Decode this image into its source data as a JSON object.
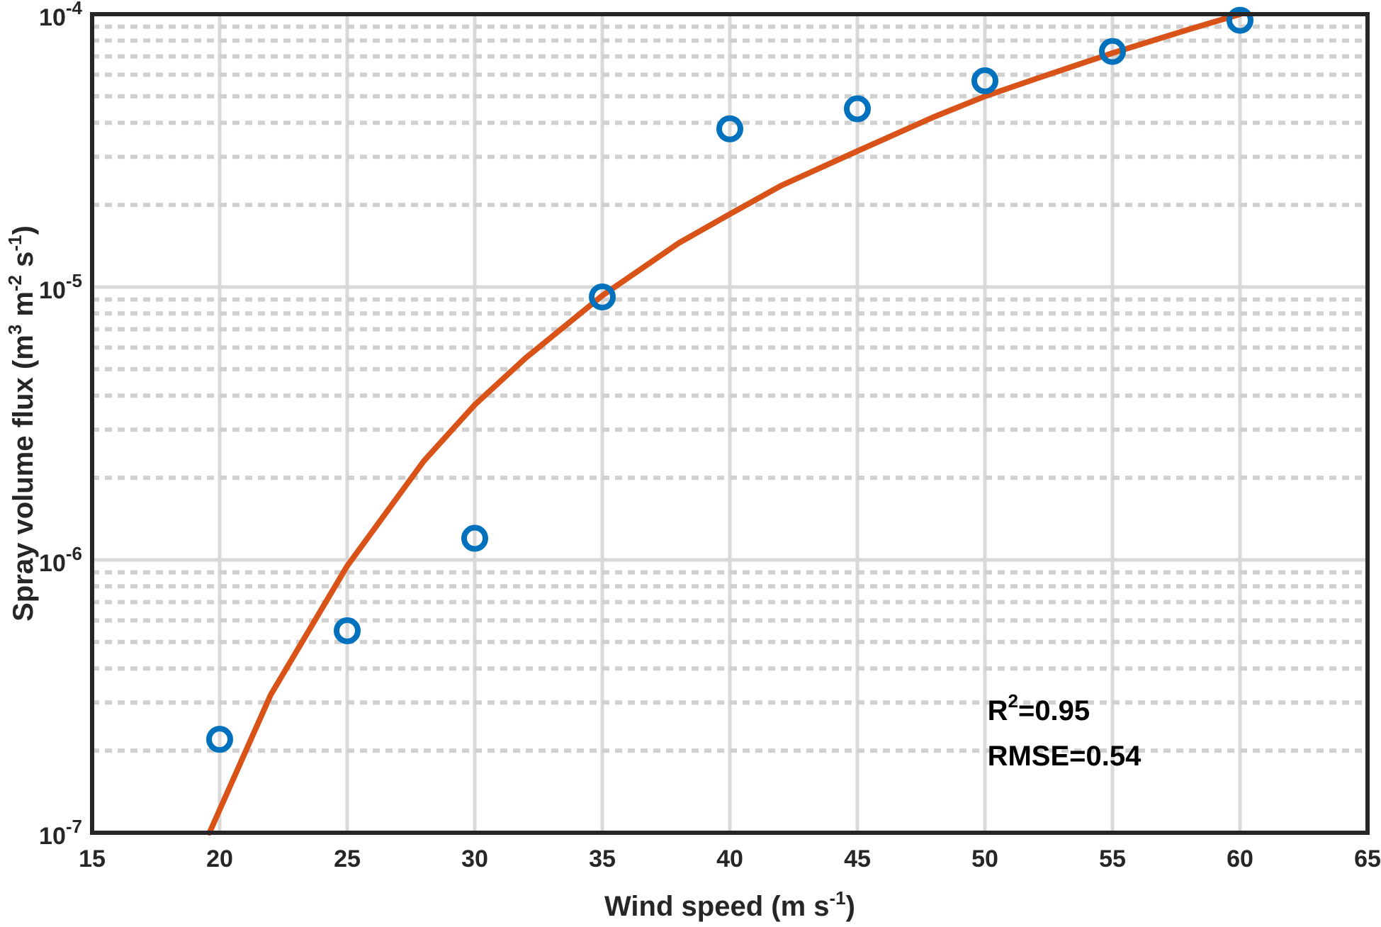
{
  "chart_data": {
    "type": "scatter",
    "x_axis": {
      "label_main": "Wind speed (m s",
      "label_sup": "-1",
      "label_close": ")",
      "lim": [
        15,
        65
      ],
      "ticks": [
        15,
        20,
        25,
        30,
        35,
        40,
        45,
        50,
        55,
        60,
        65
      ],
      "tick_labels": [
        "15",
        "20",
        "25",
        "30",
        "35",
        "40",
        "45",
        "50",
        "55",
        "60",
        "65"
      ]
    },
    "y_axis": {
      "scale": "log",
      "lim": [
        1e-07,
        0.0001
      ],
      "label_parts": [
        {
          "t": "Spray volume flux (m",
          "sup": false
        },
        {
          "t": "3",
          "sup": true
        },
        {
          "t": " m",
          "sup": false
        },
        {
          "t": "-2",
          "sup": true
        },
        {
          "t": " s",
          "sup": false
        },
        {
          "t": "-1",
          "sup": true
        },
        {
          "t": ")",
          "sup": false
        }
      ],
      "ticks": [
        {
          "value": 1e-07,
          "base": "10",
          "exp": "-7"
        },
        {
          "value": 1e-06,
          "base": "10",
          "exp": "-6"
        },
        {
          "value": 1e-05,
          "base": "10",
          "exp": "-5"
        },
        {
          "value": 0.0001,
          "base": "10",
          "exp": "-4"
        }
      ]
    },
    "grid": "on (major solid, minor dotted on y)",
    "series": [
      {
        "type": "scatter",
        "marker": "circle",
        "color": "#0072BD",
        "x": [
          20,
          25,
          30,
          35,
          40,
          45,
          50,
          55,
          60
        ],
        "y": [
          2.2e-07,
          5.5e-07,
          1.2e-06,
          9.2e-06,
          3.8e-05,
          4.5e-05,
          5.7e-05,
          7.3e-05,
          9.5e-05
        ]
      },
      {
        "type": "line",
        "color": "#D95319",
        "x": [
          19.6,
          22,
          25,
          28,
          30,
          32,
          35,
          38,
          40,
          42,
          45,
          48,
          50,
          52,
          55,
          58,
          60
        ],
        "y": [
          1e-07,
          3.2e-07,
          9.5e-07,
          2.3e-06,
          3.7e-06,
          5.5e-06,
          9.3e-06,
          1.45e-05,
          1.85e-05,
          2.35e-05,
          3.15e-05,
          4.2e-05,
          5e-05,
          5.8e-05,
          7.2e-05,
          8.8e-05,
          0.0001
        ]
      }
    ],
    "annotations": {
      "r2_main": "R",
      "r2_sup": "2",
      "r2_value": "=0.95",
      "rmse": "RMSE=0.54"
    }
  }
}
